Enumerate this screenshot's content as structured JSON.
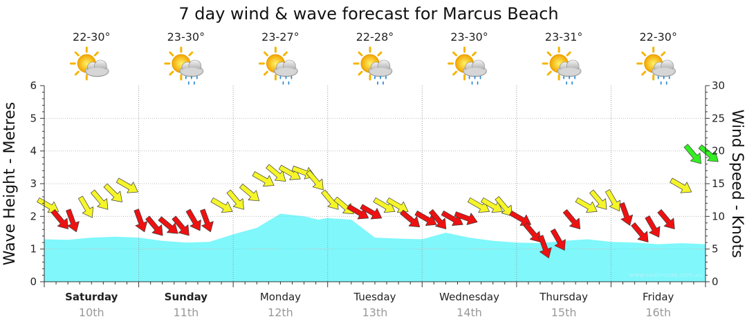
{
  "chart_data": {
    "type": "area",
    "title": "7 day wind & wave forecast for Marcus Beach",
    "ylabel_left": "Wave Height - Metres",
    "ylabel_right": "Wind Speed - Knots",
    "ylim_left": [
      0,
      6
    ],
    "ylim_right": [
      0,
      30
    ],
    "left_ticks": [
      "0",
      "1",
      "2",
      "3",
      "4",
      "5",
      "6"
    ],
    "right_ticks": [
      "0",
      "5",
      "10",
      "15",
      "20",
      "25",
      "30"
    ],
    "watermark": "www.seabreeze.com.au",
    "days": [
      {
        "day": "Saturday",
        "date": "10th",
        "temp": "22-30°",
        "icon": "sun-cloud-icon",
        "bold": true
      },
      {
        "day": "Sunday",
        "date": "11th",
        "temp": "23-30°",
        "icon": "sun-cloud-rain-icon",
        "bold": true
      },
      {
        "day": "Monday",
        "date": "12th",
        "temp": "23-27°",
        "icon": "sun-cloud-rain-icon",
        "bold": false
      },
      {
        "day": "Tuesday",
        "date": "13th",
        "temp": "22-28°",
        "icon": "sun-cloud-rain-icon",
        "bold": false
      },
      {
        "day": "Wednesday",
        "date": "14th",
        "temp": "23-30°",
        "icon": "sun-cloud-rain-icon",
        "bold": false
      },
      {
        "day": "Thursday",
        "date": "15th",
        "temp": "23-31°",
        "icon": "sun-cloud-rain-icon",
        "bold": false
      },
      {
        "day": "Friday",
        "date": "16th",
        "temp": "22-30°",
        "icon": "sun-cloud-rain-icon",
        "bold": false
      }
    ],
    "wave_series": {
      "name": "Wave Height",
      "color": "#7ff7fb",
      "t": [
        0,
        0.25,
        0.5,
        0.75,
        1.0,
        1.25,
        1.5,
        1.75,
        2.0,
        2.25,
        2.5,
        2.75,
        2.9,
        3.0,
        3.25,
        3.5,
        3.75,
        4.0,
        4.25,
        4.5,
        4.75,
        5.0,
        5.25,
        5.5,
        5.75,
        6.0,
        6.25,
        6.5,
        6.75,
        7.0
      ],
      "y": [
        1.3,
        1.28,
        1.35,
        1.38,
        1.35,
        1.25,
        1.2,
        1.22,
        1.45,
        1.65,
        2.08,
        2.0,
        1.9,
        1.95,
        1.9,
        1.35,
        1.32,
        1.3,
        1.5,
        1.35,
        1.25,
        1.2,
        1.18,
        1.25,
        1.3,
        1.22,
        1.2,
        1.15,
        1.18,
        1.15
      ]
    },
    "wind_series": {
      "name": "Wind Speed",
      "color_scale": {
        "red": "below 12 kn",
        "yellow": "12-19 kn",
        "green": "20+ kn"
      },
      "colors": {
        "red": "#ee1111",
        "yellow": "#f5f52a",
        "green": "#33ee22"
      },
      "t": [
        0.0,
        0.14,
        0.28,
        0.42,
        0.56,
        0.7,
        0.84,
        1.0,
        1.14,
        1.28,
        1.42,
        1.56,
        1.7,
        1.84,
        2.0,
        2.14,
        2.28,
        2.42,
        2.56,
        2.7,
        2.84,
        3.0,
        3.14,
        3.28,
        3.42,
        3.56,
        3.7,
        3.84,
        4.0,
        4.14,
        4.28,
        4.42,
        4.56,
        4.7,
        4.84,
        5.0,
        5.14,
        5.28,
        5.42,
        5.56,
        5.7,
        5.84,
        6.0,
        6.14,
        6.28,
        6.42,
        6.56,
        6.7,
        6.84,
        7.0
      ],
      "speed": [
        12,
        10,
        10,
        12,
        13,
        14,
        15,
        10,
        9,
        9,
        9,
        10,
        10,
        12,
        13,
        14,
        16,
        17,
        17,
        17,
        16,
        13,
        12,
        11,
        11,
        12,
        12,
        10,
        10,
        10,
        10,
        10,
        12,
        12,
        12,
        10,
        8,
        6,
        7,
        10,
        12,
        13,
        13,
        11,
        8,
        9,
        10,
        15,
        20,
        20
      ],
      "direction_deg": [
        300,
        320,
        340,
        330,
        320,
        315,
        300,
        340,
        320,
        310,
        320,
        330,
        340,
        300,
        320,
        310,
        300,
        310,
        300,
        290,
        320,
        320,
        310,
        300,
        300,
        300,
        300,
        310,
        300,
        320,
        300,
        290,
        300,
        300,
        320,
        300,
        320,
        340,
        330,
        320,
        300,
        320,
        330,
        340,
        320,
        330,
        320,
        300,
        320,
        310
      ]
    }
  }
}
